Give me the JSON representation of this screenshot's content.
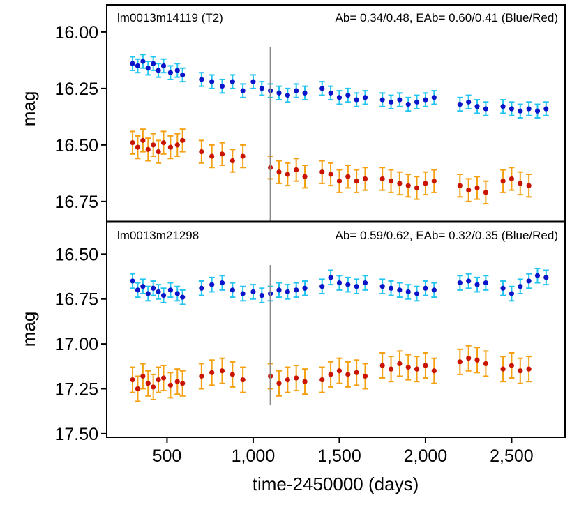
{
  "figure": {
    "xlabel": "time-2450000 (days)",
    "x_ticks": [
      500,
      1000,
      1500,
      2000,
      2500
    ],
    "x_tick_labels": [
      "500",
      "1,000",
      "1,500",
      "2,000",
      "2,500"
    ],
    "xlim": [
      150,
      2810
    ],
    "vline_x": 1100,
    "colors": {
      "blue_point": "#0a14c8",
      "blue_err": "#22c4f0",
      "red_point": "#c81400",
      "red_err": "#f5a010",
      "vline": "#888888",
      "frame": "#000000"
    }
  },
  "chart_data": [
    {
      "type": "scatter",
      "panel_title": "lm0013m14119 (T2)",
      "annotation": "Ab= 0.34/0.48, EAb= 0.60/0.41  (Blue/Red)",
      "ylabel": "mag",
      "ylim": [
        16.84,
        15.88
      ],
      "y_inverted": true,
      "y_ticks": [
        16.0,
        16.25,
        16.5,
        16.75
      ],
      "y_tick_labels": [
        "16.00",
        "16.25",
        "16.50",
        "16.75"
      ],
      "series": [
        {
          "color": "blue",
          "err": 0.03,
          "x": [
            300,
            330,
            360,
            390,
            420,
            450,
            480,
            520,
            560,
            590,
            700,
            760,
            820,
            880,
            940,
            1000,
            1050,
            1100,
            1150,
            1200,
            1250,
            1300,
            1400,
            1450,
            1500,
            1550,
            1600,
            1650,
            1750,
            1800,
            1850,
            1900,
            1950,
            2000,
            2050,
            2200,
            2250,
            2300,
            2350,
            2450,
            2500,
            2550,
            2600,
            2650,
            2700
          ],
          "y": [
            16.14,
            16.15,
            16.13,
            16.16,
            16.14,
            16.17,
            16.15,
            16.18,
            16.17,
            16.19,
            16.21,
            16.22,
            16.24,
            16.22,
            16.26,
            16.22,
            16.25,
            16.26,
            16.27,
            16.28,
            16.26,
            16.27,
            16.25,
            16.27,
            16.29,
            16.28,
            16.3,
            16.29,
            16.3,
            16.31,
            16.3,
            16.32,
            16.31,
            16.3,
            16.29,
            16.32,
            16.31,
            16.33,
            16.34,
            16.33,
            16.34,
            16.35,
            16.34,
            16.35,
            16.34
          ]
        },
        {
          "color": "red",
          "err": 0.05,
          "x": [
            300,
            330,
            360,
            390,
            420,
            450,
            480,
            520,
            560,
            590,
            700,
            760,
            820,
            880,
            940,
            1100,
            1150,
            1200,
            1250,
            1300,
            1400,
            1450,
            1500,
            1550,
            1600,
            1650,
            1750,
            1800,
            1850,
            1900,
            1950,
            2000,
            2050,
            2200,
            2250,
            2300,
            2350,
            2450,
            2500,
            2550,
            2600
          ],
          "y": [
            16.49,
            16.51,
            16.48,
            16.52,
            16.5,
            16.53,
            16.49,
            16.51,
            16.5,
            16.48,
            16.53,
            16.55,
            16.54,
            16.57,
            16.55,
            16.6,
            16.62,
            16.63,
            16.61,
            16.64,
            16.62,
            16.63,
            16.66,
            16.64,
            16.66,
            16.65,
            16.65,
            16.66,
            16.67,
            16.68,
            16.69,
            16.67,
            16.66,
            16.68,
            16.7,
            16.69,
            16.71,
            16.66,
            16.65,
            16.67,
            16.68
          ]
        }
      ]
    },
    {
      "type": "scatter",
      "panel_title": "lm0013m21298",
      "annotation": "Ab= 0.59/0.62, EAb= 0.32/0.35  (Blue/Red)",
      "ylabel": "mag",
      "ylim": [
        17.52,
        16.32
      ],
      "y_inverted": true,
      "y_ticks": [
        16.5,
        16.75,
        17.0,
        17.25,
        17.5
      ],
      "y_tick_labels": [
        "16.50",
        "16.75",
        "17.00",
        "17.25",
        "17.50"
      ],
      "series": [
        {
          "color": "blue",
          "err": 0.04,
          "x": [
            300,
            330,
            360,
            390,
            420,
            450,
            480,
            520,
            560,
            590,
            700,
            760,
            820,
            880,
            940,
            1000,
            1050,
            1100,
            1150,
            1200,
            1250,
            1300,
            1400,
            1450,
            1500,
            1550,
            1600,
            1650,
            1750,
            1800,
            1850,
            1900,
            1950,
            2000,
            2050,
            2200,
            2250,
            2300,
            2350,
            2450,
            2500,
            2550,
            2600,
            2650,
            2700
          ],
          "y": [
            16.65,
            16.7,
            16.68,
            16.72,
            16.69,
            16.71,
            16.73,
            16.7,
            16.72,
            16.74,
            16.69,
            16.67,
            16.66,
            16.7,
            16.72,
            16.71,
            16.73,
            16.72,
            16.7,
            16.71,
            16.7,
            16.69,
            16.68,
            16.63,
            16.66,
            16.67,
            16.68,
            16.66,
            16.68,
            16.69,
            16.7,
            16.71,
            16.72,
            16.69,
            16.7,
            16.66,
            16.65,
            16.67,
            16.66,
            16.69,
            16.72,
            16.68,
            16.65,
            16.62,
            16.63
          ]
        },
        {
          "color": "red",
          "err": 0.07,
          "x": [
            300,
            330,
            360,
            390,
            420,
            450,
            480,
            520,
            560,
            590,
            700,
            760,
            820,
            880,
            940,
            1100,
            1150,
            1200,
            1250,
            1300,
            1400,
            1450,
            1500,
            1550,
            1600,
            1650,
            1750,
            1800,
            1850,
            1900,
            1950,
            2000,
            2050,
            2200,
            2250,
            2300,
            2350,
            2450,
            2500,
            2550,
            2600
          ],
          "y": [
            17.2,
            17.25,
            17.18,
            17.22,
            17.24,
            17.2,
            17.19,
            17.23,
            17.21,
            17.22,
            17.18,
            17.16,
            17.15,
            17.17,
            17.2,
            17.18,
            17.22,
            17.2,
            17.19,
            17.21,
            17.2,
            17.17,
            17.15,
            17.17,
            17.16,
            17.18,
            17.12,
            17.14,
            17.11,
            17.13,
            17.14,
            17.12,
            17.15,
            17.1,
            17.08,
            17.09,
            17.11,
            17.14,
            17.12,
            17.15,
            17.14
          ]
        }
      ]
    }
  ]
}
